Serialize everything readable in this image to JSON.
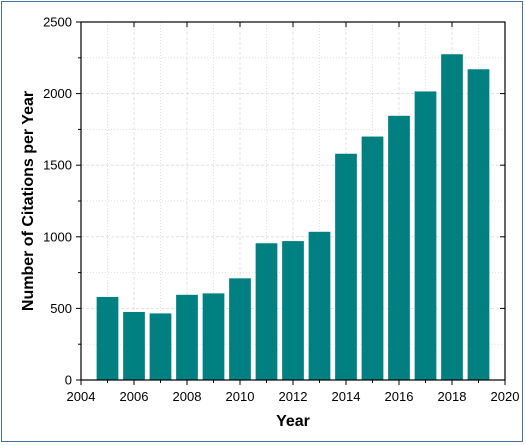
{
  "chart_data": {
    "type": "bar",
    "xlabel": "Year",
    "ylabel": "Number of Citations per Year",
    "xlim": [
      2004,
      2020
    ],
    "ylim": [
      0,
      2500
    ],
    "x_ticks": [
      "2004",
      "2006",
      "2008",
      "2010",
      "2012",
      "2014",
      "2016",
      "2018",
      "2020"
    ],
    "y_ticks": [
      "0",
      "500",
      "1000",
      "1500",
      "2000",
      "2500"
    ],
    "categories": [
      2005,
      2006,
      2007,
      2008,
      2009,
      2010,
      2011,
      2012,
      2013,
      2014,
      2015,
      2016,
      2017,
      2018,
      2019
    ],
    "values": [
      580,
      475,
      465,
      595,
      605,
      710,
      955,
      970,
      1035,
      1580,
      1700,
      1845,
      2015,
      2275,
      2170
    ],
    "bar_color": "#008080",
    "grid": true,
    "legend": "none"
  }
}
